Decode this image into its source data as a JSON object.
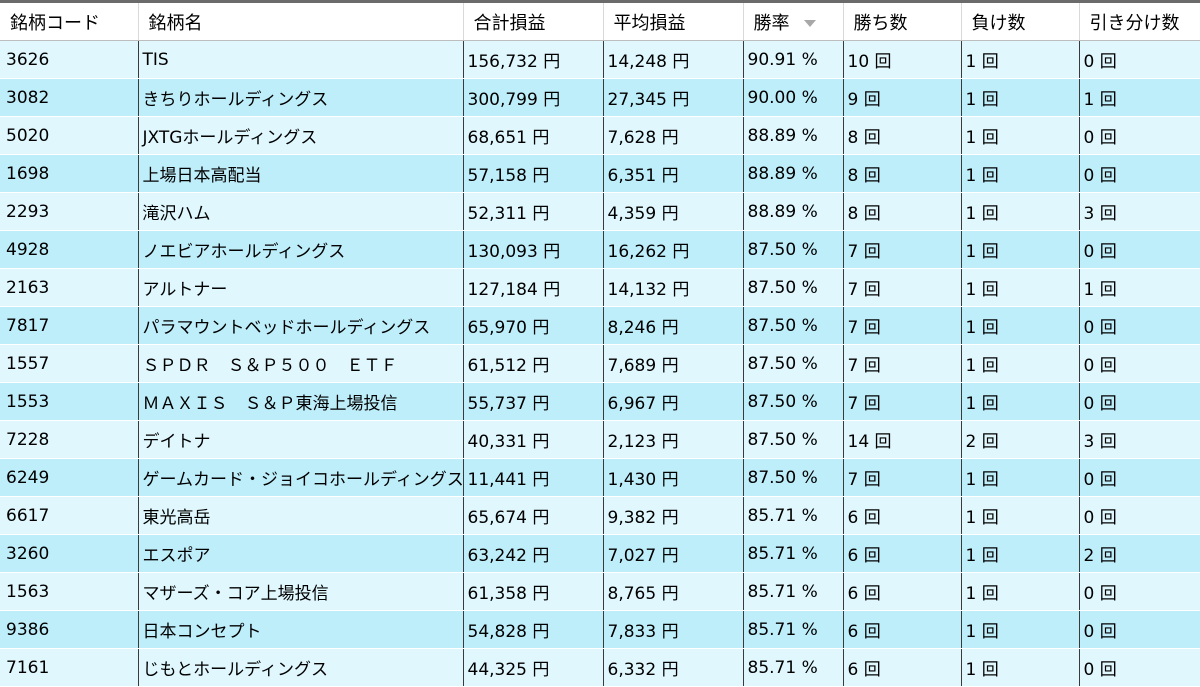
{
  "columns": {
    "code": "銘柄コード",
    "name": "銘柄名",
    "total": "合計損益",
    "avg": "平均損益",
    "winrate": "勝率",
    "wins": "勝ち数",
    "losses": "負け数",
    "draws": "引き分け数"
  },
  "sort_icon": "chevron-down-icon",
  "rows": [
    {
      "code": "3626",
      "name": "TIS",
      "total": "156,732 円",
      "avg": "14,248 円",
      "winrate": "90.91 %",
      "wins": "10 回",
      "losses": "1 回",
      "draws": "0 回"
    },
    {
      "code": "3082",
      "name": "きちりホールディングス",
      "total": "300,799 円",
      "avg": "27,345 円",
      "winrate": "90.00 %",
      "wins": "9 回",
      "losses": "1 回",
      "draws": "1 回"
    },
    {
      "code": "5020",
      "name": "JXTGホールディングス",
      "total": "68,651 円",
      "avg": "7,628 円",
      "winrate": "88.89 %",
      "wins": "8 回",
      "losses": "1 回",
      "draws": "0 回"
    },
    {
      "code": "1698",
      "name": "上場日本高配当",
      "total": "57,158 円",
      "avg": "6,351 円",
      "winrate": "88.89 %",
      "wins": "8 回",
      "losses": "1 回",
      "draws": "0 回"
    },
    {
      "code": "2293",
      "name": "滝沢ハム",
      "total": "52,311 円",
      "avg": "4,359 円",
      "winrate": "88.89 %",
      "wins": "8 回",
      "losses": "1 回",
      "draws": "3 回"
    },
    {
      "code": "4928",
      "name": "ノエビアホールディングス",
      "total": "130,093 円",
      "avg": "16,262 円",
      "winrate": "87.50 %",
      "wins": "7 回",
      "losses": "1 回",
      "draws": "0 回"
    },
    {
      "code": "2163",
      "name": "アルトナー",
      "total": "127,184 円",
      "avg": "14,132 円",
      "winrate": "87.50 %",
      "wins": "7 回",
      "losses": "1 回",
      "draws": "1 回"
    },
    {
      "code": "7817",
      "name": "パラマウントベッドホールディングス",
      "total": "65,970 円",
      "avg": "8,246 円",
      "winrate": "87.50 %",
      "wins": "7 回",
      "losses": "1 回",
      "draws": "0 回"
    },
    {
      "code": "1557",
      "name": "ＳＰＤＲ　Ｓ＆Ｐ５００　ＥＴＦ",
      "total": "61,512 円",
      "avg": "7,689 円",
      "winrate": "87.50 %",
      "wins": "7 回",
      "losses": "1 回",
      "draws": "0 回"
    },
    {
      "code": "1553",
      "name": "ＭＡＸＩＳ　Ｓ＆Ｐ東海上場投信",
      "total": "55,737 円",
      "avg": "6,967 円",
      "winrate": "87.50 %",
      "wins": "7 回",
      "losses": "1 回",
      "draws": "0 回"
    },
    {
      "code": "7228",
      "name": "デイトナ",
      "total": "40,331 円",
      "avg": "2,123 円",
      "winrate": "87.50 %",
      "wins": "14 回",
      "losses": "2 回",
      "draws": "3 回"
    },
    {
      "code": "6249",
      "name": "ゲームカード・ジョイコホールディングス",
      "total": "11,441 円",
      "avg": "1,430 円",
      "winrate": "87.50 %",
      "wins": "7 回",
      "losses": "1 回",
      "draws": "0 回"
    },
    {
      "code": "6617",
      "name": "東光高岳",
      "total": "65,674 円",
      "avg": "9,382 円",
      "winrate": "85.71 %",
      "wins": "6 回",
      "losses": "1 回",
      "draws": "0 回"
    },
    {
      "code": "3260",
      "name": "エスポア",
      "total": "63,242 円",
      "avg": "7,027 円",
      "winrate": "85.71 %",
      "wins": "6 回",
      "losses": "1 回",
      "draws": "2 回"
    },
    {
      "code": "1563",
      "name": "マザーズ・コア上場投信",
      "total": "61,358 円",
      "avg": "8,765 円",
      "winrate": "85.71 %",
      "wins": "6 回",
      "losses": "1 回",
      "draws": "0 回"
    },
    {
      "code": "9386",
      "name": "日本コンセプト",
      "total": "54,828 円",
      "avg": "7,833 円",
      "winrate": "85.71 %",
      "wins": "6 回",
      "losses": "1 回",
      "draws": "0 回"
    },
    {
      "code": "7161",
      "name": "じもとホールディングス",
      "total": "44,325 円",
      "avg": "6,332 円",
      "winrate": "85.71 %",
      "wins": "6 回",
      "losses": "1 回",
      "draws": "0 回"
    }
  ]
}
